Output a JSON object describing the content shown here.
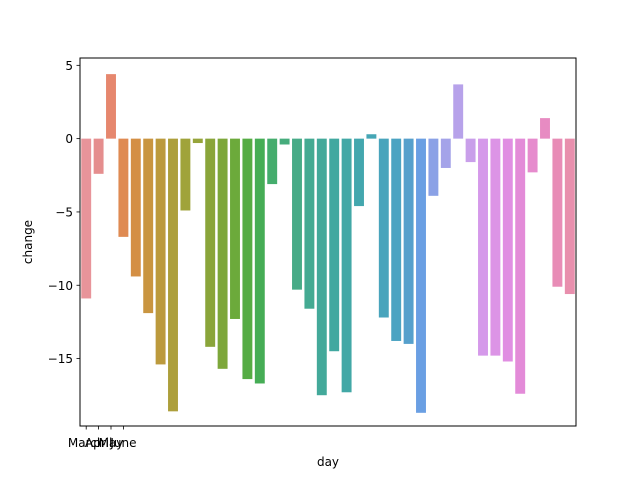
{
  "chart_data": {
    "type": "bar",
    "xlabel": "day",
    "ylabel": "change",
    "ylim": [
      -19.6,
      5.5
    ],
    "yticks": [
      5,
      0,
      -5,
      -10,
      -15
    ],
    "ytick_labels": [
      "5",
      "0",
      "−5",
      "−10",
      "−15"
    ],
    "xtick_labels": [
      "March",
      "April",
      "May",
      "June"
    ],
    "grid": false,
    "values": [
      -10.9,
      -2.4,
      4.4,
      -6.7,
      -9.4,
      -11.9,
      -15.4,
      -18.6,
      -4.9,
      -0.3,
      -14.2,
      -15.7,
      -12.3,
      -16.4,
      -16.7,
      -3.1,
      -0.4,
      -10.3,
      -11.6,
      -17.5,
      -14.5,
      -17.3,
      -4.6,
      0.3,
      -12.2,
      -13.8,
      -14.0,
      -18.7,
      -3.9,
      -2.0,
      3.7,
      -1.6,
      -14.8,
      -14.8,
      -15.2,
      -17.4,
      -2.3,
      1.4,
      -10.1,
      -10.6
    ],
    "colors": [
      "#e8949a",
      "#e58e8e",
      "#e6876e",
      "#df8a52",
      "#d48f44",
      "#c99540",
      "#bc9a3d",
      "#ad9f3b",
      "#a0a33a",
      "#96a43a",
      "#8aa53a",
      "#7da73a",
      "#6caa3b",
      "#55ac44",
      "#46ad55",
      "#45ad6d",
      "#46ac7c",
      "#47ab87",
      "#44aa92",
      "#43a99a",
      "#41a8a0",
      "#42a8a6",
      "#43a7ae",
      "#45a6b5",
      "#48a4bc",
      "#4ba3c2",
      "#56a0cc",
      "#6a9fe3",
      "#8aa1e6",
      "#a4a3e9",
      "#b7a2ea",
      "#c99fea",
      "#d599ea",
      "#dc94e6",
      "#e08ee2",
      "#e38bd8",
      "#e68bcd",
      "#e78bc2",
      "#e88cb6",
      "#e88fad"
    ]
  }
}
